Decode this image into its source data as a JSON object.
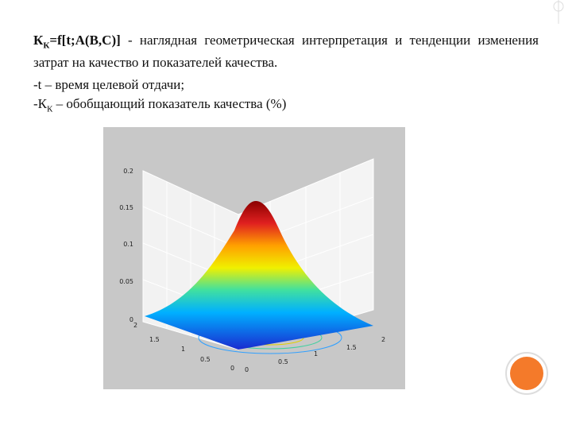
{
  "heading": {
    "symbol": "К",
    "symbol_sub": "К",
    "formula": "=f[t;A(B,C)]",
    "text": " - наглядная геометрическая интерпретация и тенденции изменения затрат на качество и показателей качества."
  },
  "bullets": [
    {
      "text": "-t – время целевой отдачи;"
    },
    {
      "prefix": "-К",
      "sub": "К",
      "text": " – обобщающий показатель качества (%)"
    }
  ],
  "figure": {
    "z_ticks": [
      "0.2",
      "0.15",
      "0.1",
      "0.05",
      "0"
    ],
    "left_ticks": [
      "2",
      "1.5",
      "1",
      "0.5",
      "0"
    ],
    "right_ticks": [
      "0",
      "0.5",
      "1",
      "1.5",
      "2"
    ]
  }
}
